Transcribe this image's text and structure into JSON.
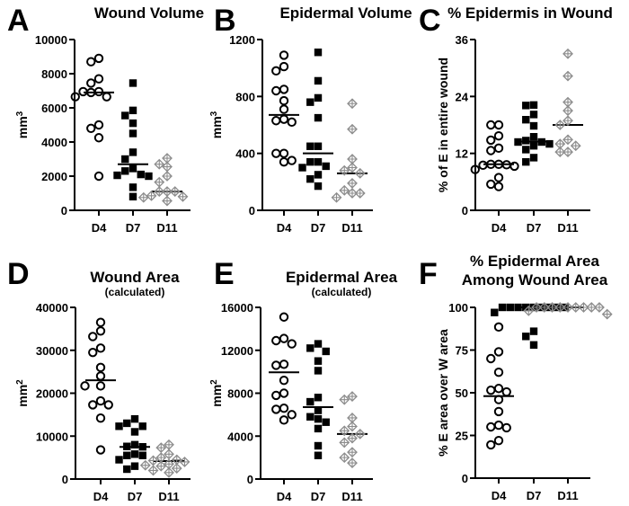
{
  "figure": {
    "colors": {
      "circle": "#000000",
      "square": "#000000",
      "diamond": "#8c8c8c",
      "median": "#000000"
    }
  },
  "chart_data": [
    {
      "panel": "A",
      "type": "scatter",
      "subtype": "dot-plot-with-median",
      "title": "Wound Volume",
      "subtitle": "",
      "ylabel": "mm",
      "ylabel_sup": "3",
      "xlabel": "",
      "ylim": [
        0,
        10000
      ],
      "yticks": [
        0,
        2000,
        4000,
        6000,
        8000,
        10000
      ],
      "categories": [
        "D4",
        "D7",
        "D11"
      ],
      "series": [
        {
          "name": "D4",
          "marker": "circle",
          "median": 6900,
          "values": [
            8900,
            8700,
            7700,
            7450,
            6950,
            6900,
            6950,
            6650,
            6650,
            5000,
            4800,
            4250,
            2000
          ]
        },
        {
          "name": "D7",
          "marker": "square",
          "median": 2700,
          "values": [
            7450,
            5850,
            5550,
            5100,
            4500,
            3400,
            3000,
            2450,
            2300,
            2100,
            2000,
            2050,
            1350,
            800
          ]
        },
        {
          "name": "D11",
          "marker": "diamond",
          "median": 1100,
          "values": [
            3050,
            2700,
            2550,
            2000,
            1650,
            1100,
            1100,
            1100,
            850,
            800,
            750,
            550
          ]
        }
      ]
    },
    {
      "panel": "B",
      "type": "scatter",
      "subtype": "dot-plot-with-median",
      "title": "Epidermal Volume",
      "subtitle": "",
      "ylabel": "mm",
      "ylabel_sup": "3",
      "xlabel": "",
      "ylim": [
        0,
        1200
      ],
      "yticks": [
        0,
        400,
        800,
        1200
      ],
      "categories": [
        "D4",
        "D7",
        "D11"
      ],
      "series": [
        {
          "name": "D4",
          "marker": "circle",
          "median": 670,
          "values": [
            1090,
            1010,
            980,
            850,
            840,
            770,
            710,
            640,
            630,
            620,
            400,
            400,
            350,
            340
          ]
        },
        {
          "name": "D7",
          "marker": "square",
          "median": 400,
          "values": [
            1110,
            910,
            790,
            760,
            650,
            450,
            450,
            340,
            340,
            300,
            310,
            250,
            220,
            170
          ]
        },
        {
          "name": "D11",
          "marker": "diamond",
          "median": 260,
          "values": [
            750,
            570,
            360,
            300,
            280,
            260,
            190,
            140,
            120,
            120,
            90
          ]
        }
      ]
    },
    {
      "panel": "C",
      "type": "scatter",
      "subtype": "dot-plot-with-median",
      "title": "% Epidermis in Wound",
      "subtitle": "",
      "ylabel": "% of E in entire wound",
      "ylabel_sup": "",
      "xlabel": "",
      "ylim": [
        0,
        36
      ],
      "yticks": [
        0,
        12,
        24,
        36
      ],
      "categories": [
        "D4",
        "D7",
        "D11"
      ],
      "series": [
        {
          "name": "D4",
          "marker": "circle",
          "median": 9.7,
          "values": [
            18,
            18,
            15.7,
            14.8,
            13.1,
            12.6,
            9.7,
            9.7,
            9.6,
            9.5,
            9.3,
            8.6,
            6.9,
            5.5,
            5.0
          ]
        },
        {
          "name": "D7",
          "marker": "square",
          "median": 14.5,
          "values": [
            22.1,
            22.2,
            20.2,
            19.1,
            17.8,
            15.5,
            14.7,
            14.4,
            14.4,
            14.0,
            13.6,
            12.8,
            11.1,
            10.2
          ]
        },
        {
          "name": "D11",
          "marker": "diamond",
          "median": 18.0,
          "values": [
            33.0,
            28.3,
            22.8,
            21.0,
            18.9,
            18.0,
            14.9,
            14.0,
            13.6,
            12.3,
            12.3
          ]
        }
      ]
    },
    {
      "panel": "D",
      "type": "scatter",
      "subtype": "dot-plot-with-median",
      "title": "Wound Area",
      "subtitle": "(calculated)",
      "ylabel": "mm",
      "ylabel_sup": "2",
      "xlabel": "",
      "ylim": [
        0,
        40000
      ],
      "yticks": [
        0,
        10000,
        20000,
        30000,
        40000
      ],
      "categories": [
        "D4",
        "D7",
        "D11"
      ],
      "series": [
        {
          "name": "D4",
          "marker": "circle",
          "median": 23000,
          "values": [
            36500,
            34500,
            33200,
            30500,
            29500,
            26000,
            24000,
            21700,
            21700,
            18200,
            17300,
            17300,
            14200,
            6800
          ]
        },
        {
          "name": "D7",
          "marker": "square",
          "median": 7500,
          "values": [
            14000,
            13000,
            12300,
            12300,
            11000,
            8000,
            7600,
            7500,
            5800,
            5500,
            5500,
            4500,
            3000,
            2300
          ]
        },
        {
          "name": "D11",
          "marker": "diamond",
          "median": 4200,
          "values": [
            8000,
            7300,
            5800,
            5000,
            4500,
            4300,
            4000,
            3500,
            3200,
            3000,
            2500,
            2000,
            1500
          ]
        }
      ]
    },
    {
      "panel": "E",
      "type": "scatter",
      "subtype": "dot-plot-with-median",
      "title": "Epidermal Area",
      "subtitle": "(calculated)",
      "ylabel": "mm",
      "ylabel_sup": "2",
      "xlabel": "",
      "ylim": [
        0,
        16000
      ],
      "yticks": [
        0,
        4000,
        8000,
        12000,
        16000
      ],
      "categories": [
        "D4",
        "D7",
        "D11"
      ],
      "series": [
        {
          "name": "D4",
          "marker": "circle",
          "median": 9950,
          "values": [
            15100,
            13100,
            12900,
            12600,
            10700,
            10600,
            9200,
            8000,
            7800,
            6600,
            6500,
            6000,
            5500
          ]
        },
        {
          "name": "D7",
          "marker": "square",
          "median": 6700,
          "values": [
            12600,
            12200,
            11900,
            11000,
            10100,
            7600,
            7200,
            6400,
            5800,
            5600,
            5300,
            4700,
            3100,
            2200
          ]
        },
        {
          "name": "D11",
          "marker": "diamond",
          "median": 4200,
          "values": [
            7700,
            7400,
            5700,
            4900,
            4500,
            4200,
            3800,
            3400,
            2500,
            2000,
            1500
          ]
        }
      ]
    },
    {
      "panel": "F",
      "type": "scatter",
      "subtype": "dot-plot-with-median",
      "title": "% Epidermal Area",
      "title_line2": "Among Wound Area",
      "subtitle": "",
      "ylabel": "% E area over W area",
      "ylabel_sup": "",
      "xlabel": "",
      "ylim": [
        0,
        100
      ],
      "yticks": [
        0,
        25,
        50,
        75,
        100
      ],
      "categories": [
        "D4",
        "D7",
        "D11"
      ],
      "series": [
        {
          "name": "D4",
          "marker": "circle",
          "median": 48,
          "values": [
            88.5,
            74,
            70,
            62,
            52.5,
            51.5,
            50.5,
            46,
            39,
            31,
            30,
            29.5,
            22,
            19.5
          ]
        },
        {
          "name": "D7",
          "marker": "square",
          "median": 100,
          "values": [
            100,
            100,
            100,
            100,
            100,
            100,
            100,
            100,
            100,
            97,
            86,
            83,
            78
          ]
        },
        {
          "name": "D11",
          "marker": "diamond",
          "median": 100,
          "values": [
            100,
            100,
            100,
            100,
            100,
            100,
            100,
            100,
            100,
            98,
            96
          ]
        }
      ]
    }
  ]
}
